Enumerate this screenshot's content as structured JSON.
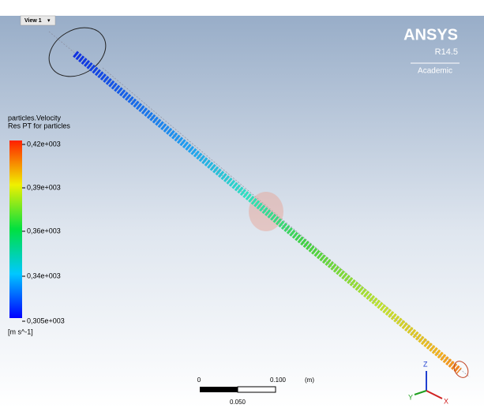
{
  "view": {
    "tab": "View 1"
  },
  "brand": {
    "name": "ANSYS",
    "release": "R14.5",
    "edition": "Academic"
  },
  "legend": {
    "title": [
      "particles.Velocity",
      "Res PT for particles"
    ],
    "labels": [
      "0,42e+003",
      "0,39e+003",
      "0,36e+003",
      "0,34e+003",
      "0,305e+003"
    ],
    "unit": "[m s^-1]"
  },
  "scale_bar": {
    "start": "0",
    "end": "0.100",
    "unit": "(m)",
    "mid": "0.050"
  },
  "axes": {
    "z": "Z",
    "y": "Y",
    "x": "X"
  }
}
